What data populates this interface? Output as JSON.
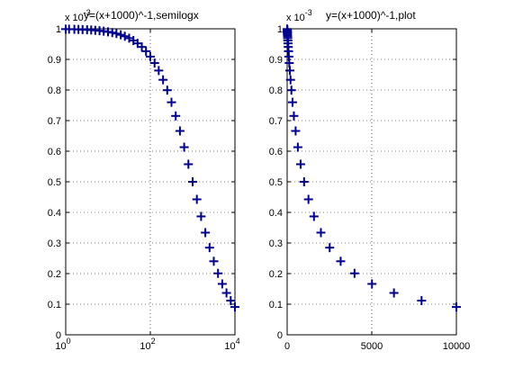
{
  "chart_data": [
    {
      "type": "scatter",
      "title": "y=(x+1000)^-1,semilogx",
      "multiplier": "x 10",
      "multiplier_exponent": "-3",
      "x_scale": "log",
      "xlim": [
        1,
        10000
      ],
      "ylim": [
        0,
        1
      ],
      "x_ticks": [
        {
          "value": 1,
          "base": "10",
          "exp": "0"
        },
        {
          "value": 100,
          "base": "10",
          "exp": "2"
        },
        {
          "value": 10000,
          "base": "10",
          "exp": "4"
        }
      ],
      "y_ticks": [
        {
          "value": 0,
          "label": "0"
        },
        {
          "value": 0.1,
          "label": "0.1"
        },
        {
          "value": 0.2,
          "label": "0.2"
        },
        {
          "value": 0.3,
          "label": "0.3"
        },
        {
          "value": 0.4,
          "label": "0.4"
        },
        {
          "value": 0.5,
          "label": "0.5"
        },
        {
          "value": 0.6,
          "label": "0.6"
        },
        {
          "value": 0.7,
          "label": "0.7"
        },
        {
          "value": 0.8,
          "label": "0.8"
        },
        {
          "value": 0.9,
          "label": "0.9"
        },
        {
          "value": 1,
          "label": "1"
        }
      ],
      "grid": true,
      "marker": "+",
      "color": "#00008f",
      "series": [
        {
          "x": [
            1,
            1.2,
            1.6,
            2,
            2.5,
            3.2,
            4,
            5,
            6.3,
            7.9,
            10,
            12.6,
            15.8,
            20,
            25,
            31.6,
            39.8,
            50,
            63,
            79,
            100,
            126,
            158,
            200,
            251,
            316,
            398,
            501,
            631,
            794,
            1000,
            1259,
            1585,
            1995,
            2512,
            3162,
            3981,
            5012,
            6310,
            7943,
            10000
          ],
          "y": [
            0.999,
            0.9988,
            0.9984,
            0.998,
            0.9975,
            0.9968,
            0.996,
            0.995,
            0.9937,
            0.9922,
            0.9901,
            0.9876,
            0.9845,
            0.9804,
            0.9756,
            0.9694,
            0.9617,
            0.9524,
            0.9407,
            0.9268,
            0.9091,
            0.8881,
            0.8636,
            0.8333,
            0.7994,
            0.7599,
            0.7153,
            0.6662,
            0.6131,
            0.5574,
            0.5,
            0.4427,
            0.3869,
            0.3339,
            0.2848,
            0.2403,
            0.2008,
            0.1663,
            0.1368,
            0.1118,
            0.0909
          ]
        }
      ]
    },
    {
      "type": "scatter",
      "title": "y=(x+1000)^-1,plot",
      "multiplier": "x 10",
      "multiplier_exponent": "-3",
      "x_scale": "linear",
      "xlim": [
        0,
        10000
      ],
      "ylim": [
        0,
        1
      ],
      "x_ticks": [
        {
          "value": 0,
          "label": "0"
        },
        {
          "value": 5000,
          "label": "5000"
        },
        {
          "value": 10000,
          "label": "10000"
        }
      ],
      "y_ticks": [
        {
          "value": 0,
          "label": "0"
        },
        {
          "value": 0.1,
          "label": "0.1"
        },
        {
          "value": 0.2,
          "label": "0.2"
        },
        {
          "value": 0.3,
          "label": "0.3"
        },
        {
          "value": 0.4,
          "label": "0.4"
        },
        {
          "value": 0.5,
          "label": "0.5"
        },
        {
          "value": 0.6,
          "label": "0.6"
        },
        {
          "value": 0.7,
          "label": "0.7"
        },
        {
          "value": 0.8,
          "label": "0.8"
        },
        {
          "value": 0.9,
          "label": "0.9"
        },
        {
          "value": 1,
          "label": "1"
        }
      ],
      "grid": true,
      "marker": "+",
      "color": "#00008f",
      "series": [
        {
          "x": [
            1,
            1.2,
            1.6,
            2,
            2.5,
            3.2,
            4,
            5,
            6.3,
            7.9,
            10,
            12.6,
            15.8,
            20,
            25,
            31.6,
            39.8,
            50,
            63,
            79,
            100,
            126,
            158,
            200,
            251,
            316,
            398,
            501,
            631,
            794,
            1000,
            1259,
            1585,
            1995,
            2512,
            3162,
            3981,
            5012,
            6310,
            7943,
            10000
          ],
          "y": [
            0.999,
            0.9988,
            0.9984,
            0.998,
            0.9975,
            0.9968,
            0.996,
            0.995,
            0.9937,
            0.9922,
            0.9901,
            0.9876,
            0.9845,
            0.9804,
            0.9756,
            0.9694,
            0.9617,
            0.9524,
            0.9407,
            0.9268,
            0.9091,
            0.8881,
            0.8636,
            0.8333,
            0.7994,
            0.7599,
            0.7153,
            0.6662,
            0.6131,
            0.5574,
            0.5,
            0.4427,
            0.3869,
            0.3339,
            0.2848,
            0.2403,
            0.2008,
            0.1663,
            0.1368,
            0.1118,
            0.0909
          ]
        }
      ]
    }
  ]
}
